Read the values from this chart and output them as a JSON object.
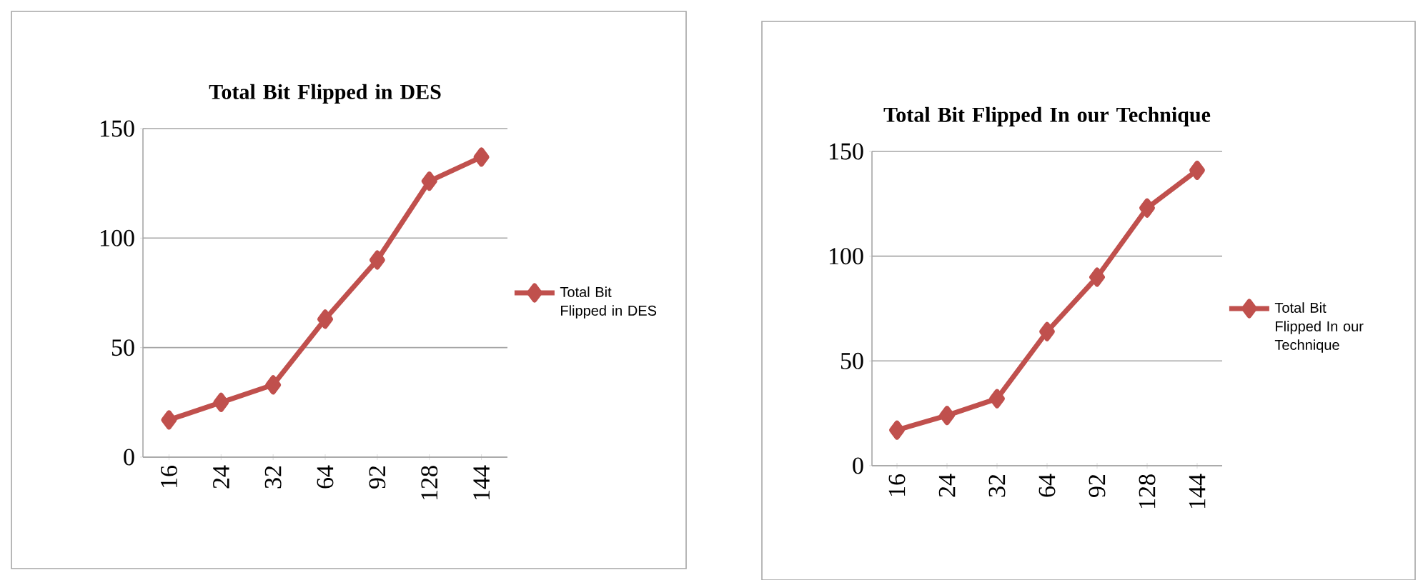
{
  "chart_data": [
    {
      "type": "line",
      "title": "Total Bit Flipped in DES",
      "categories": [
        "16",
        "24",
        "32",
        "64",
        "92",
        "128",
        "144"
      ],
      "series": [
        {
          "name": "Total Bit Flipped in DES",
          "color": "#c0504d",
          "values": [
            17,
            25,
            33,
            63,
            90,
            126,
            137
          ]
        }
      ],
      "ylim": [
        0,
        150
      ],
      "yticks": [
        0,
        50,
        100,
        150
      ],
      "grid": "y",
      "legend": "right",
      "marker": "diamond",
      "line_style": "solid"
    },
    {
      "type": "line",
      "title": "Total Bit Flipped In our Technique",
      "categories": [
        "16",
        "24",
        "32",
        "64",
        "92",
        "128",
        "144"
      ],
      "series": [
        {
          "name": "Total Bit Flipped In our Technique",
          "color": "#c0504d",
          "values": [
            17,
            24,
            32,
            64,
            90,
            123,
            141
          ]
        }
      ],
      "ylim": [
        0,
        150
      ],
      "yticks": [
        0,
        50,
        100,
        150
      ],
      "grid": "y",
      "legend": "right",
      "marker": "diamond",
      "line_style": "solid"
    }
  ]
}
